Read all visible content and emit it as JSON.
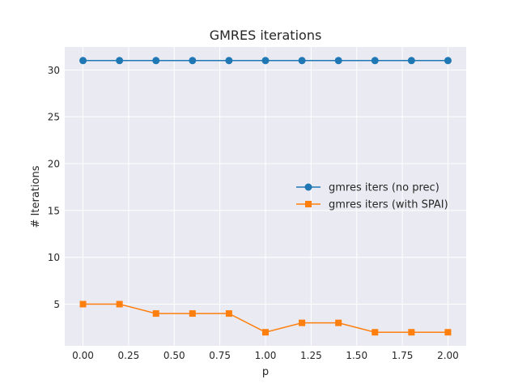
{
  "chart_data": {
    "type": "line",
    "title": "GMRES iterations",
    "xlabel": "p",
    "ylabel": "# Iterations",
    "xlim": [
      -0.1,
      2.1
    ],
    "ylim": [
      0.55,
      32.45
    ],
    "xticks": [
      0.0,
      0.25,
      0.5,
      0.75,
      1.0,
      1.25,
      1.5,
      1.75,
      2.0
    ],
    "xtick_labels": [
      "0.00",
      "0.25",
      "0.50",
      "0.75",
      "1.00",
      "1.25",
      "1.50",
      "1.75",
      "2.00"
    ],
    "yticks": [
      5,
      10,
      15,
      20,
      25,
      30
    ],
    "ytick_labels": [
      "5",
      "10",
      "15",
      "20",
      "25",
      "30"
    ],
    "grid": true,
    "legend_position": "center-right",
    "x": [
      0.0,
      0.2,
      0.4,
      0.6,
      0.8,
      1.0,
      1.2,
      1.4,
      1.6,
      1.8,
      2.0
    ],
    "series": [
      {
        "name": "gmres iters (no prec)",
        "marker": "circle",
        "color": "#1f77b4",
        "values": [
          31,
          31,
          31,
          31,
          31,
          31,
          31,
          31,
          31,
          31,
          31
        ]
      },
      {
        "name": "gmres iters (with SPAI)",
        "marker": "square",
        "color": "#ff7f0e",
        "values": [
          5,
          5,
          4,
          4,
          4,
          2,
          3,
          3,
          2,
          2,
          2
        ]
      }
    ]
  }
}
